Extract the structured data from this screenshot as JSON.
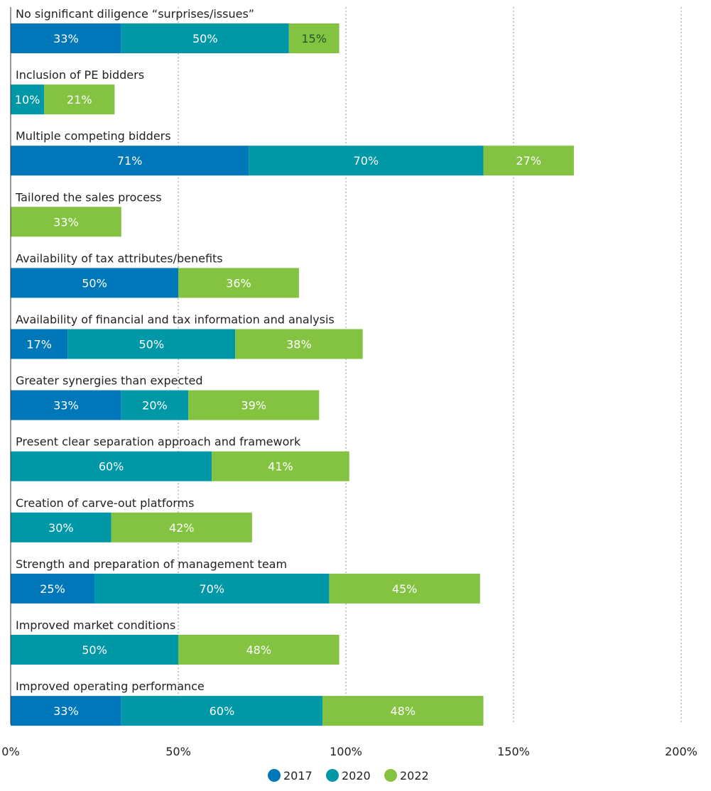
{
  "chart_data": {
    "type": "bar",
    "orientation": "horizontal",
    "stacked": true,
    "categories": [
      "No significant diligence “surprises/issues”",
      "Inclusion of PE bidders",
      "Multiple competing bidders",
      "Tailored the sales process",
      "Availability of tax attributes/benefits",
      "Availability of financial and tax information and analysis",
      "Greater synergies than expected",
      "Present clear separation approach and framework",
      "Creation of carve-out platforms",
      "Strength and preparation of management team",
      "Improved market conditions",
      "Improved operating performance"
    ],
    "series": [
      {
        "name": "2017",
        "color": "#0077B8",
        "values": [
          33,
          null,
          71,
          null,
          50,
          17,
          33,
          null,
          null,
          25,
          null,
          33
        ],
        "labels": [
          "33%",
          null,
          "71%",
          null,
          "50%",
          "17%",
          "33%",
          null,
          null,
          "25%",
          null,
          "33%"
        ]
      },
      {
        "name": "2020",
        "color": "#0097A7",
        "values": [
          50,
          10,
          70,
          null,
          null,
          50,
          20,
          60,
          30,
          70,
          50,
          60
        ],
        "labels": [
          "50%",
          "10%",
          "70%",
          null,
          null,
          "50%",
          "20%",
          "60%",
          "30%",
          "70%",
          "50%",
          "60%"
        ]
      },
      {
        "name": "2022",
        "color": "#84C341",
        "values": [
          15,
          21,
          27,
          33,
          36,
          38,
          39,
          41,
          42,
          45,
          48,
          48
        ],
        "labels": [
          "15%",
          "21%",
          "27%",
          "33%",
          "36%",
          "38%",
          "39%",
          "41%",
          "42%",
          "45%",
          "48%",
          "48%"
        ]
      }
    ],
    "x_ticks": [
      0,
      50,
      100,
      150,
      200
    ],
    "x_tick_labels": [
      "0%",
      "50%",
      "100%",
      "150%",
      "200%"
    ],
    "xlim": [
      0,
      200
    ],
    "grid": "vertical-dotted",
    "legend": "bottom-center",
    "title": "",
    "xlabel": "",
    "ylabel": ""
  }
}
